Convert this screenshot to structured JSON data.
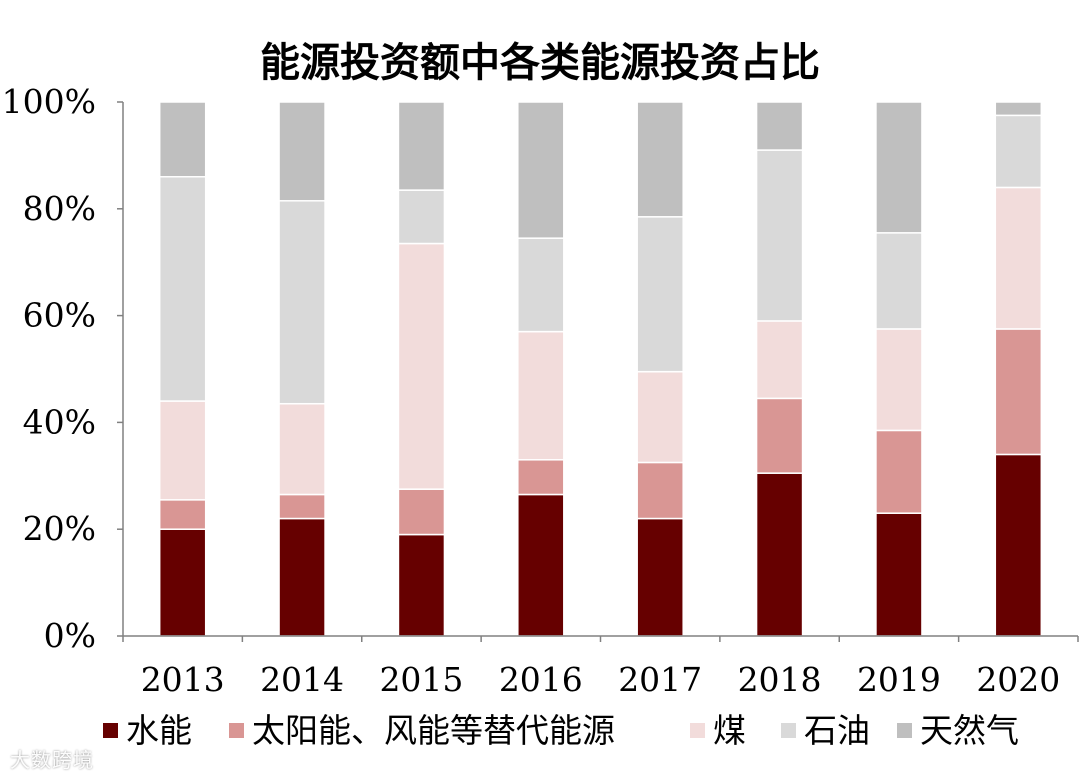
{
  "chart_data": {
    "type": "bar",
    "stacked": true,
    "percent": true,
    "title": "能源投资额中各类能源投资占比",
    "categories": [
      "2013",
      "2014",
      "2015",
      "2016",
      "2017",
      "2018",
      "2019",
      "2020"
    ],
    "ylim": [
      0,
      100
    ],
    "yticks": [
      "0%",
      "20%",
      "40%",
      "60%",
      "80%",
      "100%"
    ],
    "legend_position": "bottom",
    "grid": false,
    "series": [
      {
        "name": "水能",
        "color": "#660000",
        "values": [
          20,
          22,
          19,
          26.5,
          22,
          30.5,
          23,
          34
        ]
      },
      {
        "name": "太阳能、风能等替代能源",
        "color": "#d99694",
        "values": [
          5.5,
          4.5,
          8.5,
          6.5,
          10.5,
          14,
          15.5,
          23.5
        ]
      },
      {
        "name": "煤",
        "color": "#f2dcdb",
        "values": [
          18.5,
          17,
          46,
          24,
          17,
          14.5,
          19,
          26.5
        ]
      },
      {
        "name": "石油",
        "color": "#d9d9d9",
        "values": [
          42,
          38,
          10,
          17.5,
          29,
          32,
          18,
          13.5
        ]
      },
      {
        "name": "天然气",
        "color": "#bfbfbf",
        "values": [
          14,
          18.5,
          16.5,
          25.5,
          21.5,
          9,
          24.5,
          2.5
        ]
      }
    ]
  },
  "watermark": "大数跨境"
}
